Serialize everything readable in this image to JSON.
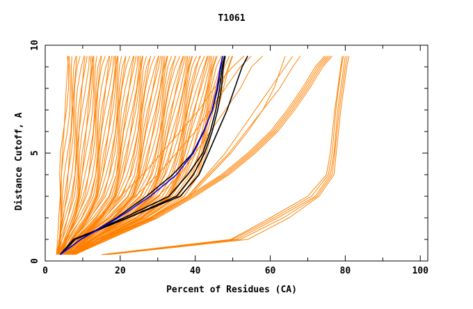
{
  "chart_data": {
    "type": "line",
    "title": "T1061",
    "xlabel": "Percent of Residues (CA)",
    "ylabel": "Distance Cutoff, A",
    "xlim": [
      0,
      102
    ],
    "ylim": [
      0,
      10
    ],
    "x_ticks": [
      0,
      20,
      40,
      60,
      80,
      100
    ],
    "x_tick_labels": [
      "0",
      "20",
      "40",
      "60",
      "80",
      "100"
    ],
    "y_ticks": [
      0,
      5,
      10
    ],
    "y_tick_labels": [
      "0",
      "5",
      "10"
    ],
    "grid": false,
    "legend": "none",
    "colors": {
      "other_models": "#ff8000",
      "highlight_black": "#000000",
      "highlight_blue": "#0000ff"
    },
    "y_cutoffs": [
      0.3,
      1,
      2,
      3,
      4,
      5,
      6,
      7,
      8,
      9,
      9.5
    ],
    "series": [
      {
        "name": "orange",
        "color": "#ff8000",
        "x": [
          3,
          3.3,
          3.6,
          4,
          4.3,
          4.6,
          5,
          5.3,
          5.6,
          6,
          6.2
        ]
      },
      {
        "name": "orange",
        "color": "#ff8000",
        "x": [
          3.3,
          3.9,
          4.8,
          5.7,
          6.1,
          6.5,
          7,
          7.3,
          7.7,
          8.2,
          8.4
        ]
      },
      {
        "name": "orange",
        "color": "#ff8000",
        "x": [
          3.5,
          4.5,
          6,
          7.3,
          8,
          8.4,
          9,
          9.4,
          9.8,
          10.3,
          10.6
        ]
      },
      {
        "name": "orange",
        "color": "#ff8000",
        "x": [
          3.8,
          5.1,
          7.3,
          9,
          9.8,
          10.4,
          10.9,
          11.4,
          11.9,
          12.5,
          12.8
        ]
      },
      {
        "name": "orange",
        "color": "#ff8000",
        "x": [
          4,
          5.6,
          8.5,
          10.6,
          11.6,
          12.3,
          12.9,
          13.4,
          14,
          14.6,
          15
        ]
      },
      {
        "name": "orange",
        "color": "#ff8000",
        "x": [
          4.3,
          6.2,
          9.7,
          12.3,
          13.5,
          14.2,
          14.9,
          15.5,
          16.1,
          16.8,
          17.2
        ]
      },
      {
        "name": "orange",
        "color": "#ff8000",
        "x": [
          4.5,
          6.8,
          10.9,
          13.9,
          15.3,
          16.1,
          16.9,
          17.5,
          18.2,
          18.9,
          19.3
        ]
      },
      {
        "name": "orange",
        "color": "#ff8000",
        "x": [
          4.8,
          7.4,
          12.1,
          15.6,
          17.1,
          18,
          18.8,
          19.5,
          20.3,
          21.1,
          21.5
        ]
      },
      {
        "name": "orange",
        "color": "#ff8000",
        "x": [
          5,
          8,
          13.4,
          17.2,
          19,
          20,
          20.8,
          21.6,
          22.4,
          23.2,
          23.7
        ]
      },
      {
        "name": "orange",
        "color": "#ff8000",
        "x": [
          5.3,
          8.6,
          14.6,
          18.9,
          20.8,
          21.9,
          22.8,
          23.6,
          24.5,
          25.4,
          25.9
        ]
      },
      {
        "name": "orange",
        "color": "#ff8000",
        "x": [
          5.5,
          9.2,
          15.8,
          20.5,
          22.7,
          23.8,
          24.8,
          25.7,
          26.6,
          27.5,
          28.1
        ]
      },
      {
        "name": "orange",
        "color": "#ff8000",
        "x": [
          5.8,
          9.7,
          17,
          22.2,
          24.5,
          25.7,
          26.7,
          27.7,
          28.7,
          29.7,
          30.3
        ]
      },
      {
        "name": "orange",
        "color": "#ff8000",
        "x": [
          6,
          10.3,
          18.2,
          23.8,
          26.3,
          27.6,
          28.7,
          29.7,
          30.7,
          31.8,
          32.5
        ]
      },
      {
        "name": "orange",
        "color": "#ff8000",
        "x": [
          6.3,
          10.9,
          19.5,
          25.5,
          28.2,
          29.6,
          30.7,
          31.8,
          32.8,
          34,
          34.7
        ]
      },
      {
        "name": "orange",
        "color": "#ff8000",
        "x": [
          6.5,
          11.5,
          20.7,
          27.1,
          30,
          31.5,
          32.7,
          33.8,
          34.9,
          36.1,
          36.9
        ]
      },
      {
        "name": "orange",
        "color": "#ff8000",
        "x": [
          6.8,
          12.1,
          21.9,
          28.8,
          31.8,
          33.4,
          34.6,
          35.8,
          37,
          38.3,
          39.1
        ]
      },
      {
        "name": "orange",
        "color": "#ff8000",
        "x": [
          7,
          12.7,
          23.1,
          30.4,
          33.7,
          35.3,
          36.6,
          37.9,
          39.1,
          40.4,
          41.2
        ]
      },
      {
        "name": "orange",
        "color": "#ff8000",
        "x": [
          7.3,
          13.2,
          24.3,
          32.1,
          35.5,
          37.2,
          38.6,
          39.9,
          41.2,
          42.6,
          43.4
        ]
      },
      {
        "name": "orange",
        "color": "#ff8000",
        "x": [
          7.5,
          13.8,
          25.6,
          33.7,
          37.3,
          39.2,
          40.6,
          42,
          43.3,
          44.7,
          45.6
        ]
      },
      {
        "name": "orange",
        "color": "#ff8000",
        "x": [
          7.8,
          14.4,
          26.8,
          35.4,
          39.2,
          41.1,
          42.5,
          44,
          45.4,
          46.9,
          47.8
        ]
      },
      {
        "name": "orange",
        "color": "#ff8000",
        "x": [
          8,
          15,
          28,
          37,
          41,
          43,
          44.5,
          46,
          47.5,
          49,
          50
        ]
      },
      {
        "name": "orange",
        "color": "#ff8000",
        "x": [
          4,
          8,
          14,
          20,
          26,
          31,
          36,
          41,
          45,
          50,
          53
        ]
      },
      {
        "name": "orange",
        "color": "#ff8000",
        "x": [
          5,
          9,
          17,
          24,
          30,
          35,
          40,
          44,
          48,
          52,
          55
        ]
      },
      {
        "name": "orange",
        "color": "#ff8000",
        "x": [
          6,
          11,
          22,
          30,
          36,
          40,
          44,
          48,
          52,
          55,
          58
        ]
      },
      {
        "name": "orange",
        "color": "#ff8000",
        "x": [
          8,
          15,
          28,
          38,
          43,
          48,
          52,
          56,
          60,
          64,
          66
        ]
      },
      {
        "name": "orange",
        "color": "#ff8000",
        "x": [
          8,
          15.5,
          28.5,
          38.5,
          44,
          49.5,
          54,
          58,
          61,
          63,
          64
        ]
      },
      {
        "name": "orange",
        "color": "#ff8000",
        "x": [
          8,
          15,
          28,
          38,
          43.5,
          49,
          53.5,
          58,
          62.5,
          66,
          68
        ]
      },
      {
        "name": "orange",
        "color": "#ff8000",
        "x": [
          8,
          16,
          29,
          39,
          48,
          55,
          61,
          65.5,
          69.5,
          73,
          75.5
        ]
      },
      {
        "name": "orange",
        "color": "#ff8000",
        "x": [
          8,
          16.5,
          29.5,
          39.5,
          48.5,
          55.5,
          61.5,
          66,
          70,
          73.5,
          76
        ]
      },
      {
        "name": "orange",
        "color": "#ff8000",
        "x": [
          8,
          15.5,
          28.5,
          38.5,
          47.5,
          54.5,
          60.5,
          65,
          69,
          72.5,
          75
        ]
      },
      {
        "name": "orange",
        "color": "#ff8000",
        "x": [
          8,
          17,
          30,
          40,
          49,
          56,
          62,
          66.5,
          70.5,
          74,
          76.5
        ]
      },
      {
        "name": "orange",
        "color": "#ff8000",
        "x": [
          8,
          15,
          28,
          38,
          47,
          54,
          60,
          64.5,
          68.5,
          72,
          74.5
        ]
      },
      {
        "name": "orange",
        "color": "#ff8000",
        "x": [
          16,
          50,
          61,
          71,
          75.5,
          76.5,
          77,
          77.5,
          78.2,
          79,
          79.5
        ]
      },
      {
        "name": "orange",
        "color": "#ff8000",
        "x": [
          15.5,
          51,
          62,
          72,
          76,
          77,
          77.5,
          78,
          78.8,
          79.6,
          80
        ]
      },
      {
        "name": "orange",
        "color": "#ff8000",
        "x": [
          16.5,
          52,
          63.5,
          72.5,
          76.5,
          77.2,
          77.8,
          78.4,
          79.2,
          80,
          80.5
        ]
      },
      {
        "name": "orange",
        "color": "#ff8000",
        "x": [
          17,
          54,
          65,
          73,
          77,
          77.6,
          78.2,
          78.8,
          79.6,
          80.4,
          81
        ]
      },
      {
        "name": "orange",
        "color": "#ff8000",
        "x": [
          15,
          49.5,
          60,
          70,
          75,
          76,
          76.6,
          77.2,
          78,
          78.8,
          79.2
        ]
      },
      {
        "name": "black",
        "color": "#000000",
        "x": [
          4,
          9.5,
          19,
          27,
          34,
          39.3,
          42.2,
          44.6,
          46,
          46.8,
          47.3
        ]
      },
      {
        "name": "black",
        "color": "#000000",
        "x": [
          4,
          8,
          21,
          33,
          38,
          42,
          44,
          45.5,
          46.5,
          47.2,
          47.8
        ]
      },
      {
        "name": "black",
        "color": "#000000",
        "x": [
          4,
          7.5,
          22,
          35,
          39.5,
          42.5,
          44.5,
          46,
          47,
          47.5,
          48
        ]
      },
      {
        "name": "black",
        "color": "#000000",
        "x": [
          4,
          8,
          22,
          36,
          41,
          43.5,
          46,
          48.5,
          50.5,
          52.5,
          54
        ]
      },
      {
        "name": "blue",
        "color": "#0000ff",
        "x": [
          4,
          9.5,
          19.5,
          28,
          35,
          39.5,
          42.3,
          44.5,
          45.8,
          46.7,
          47.3
        ]
      }
    ]
  }
}
